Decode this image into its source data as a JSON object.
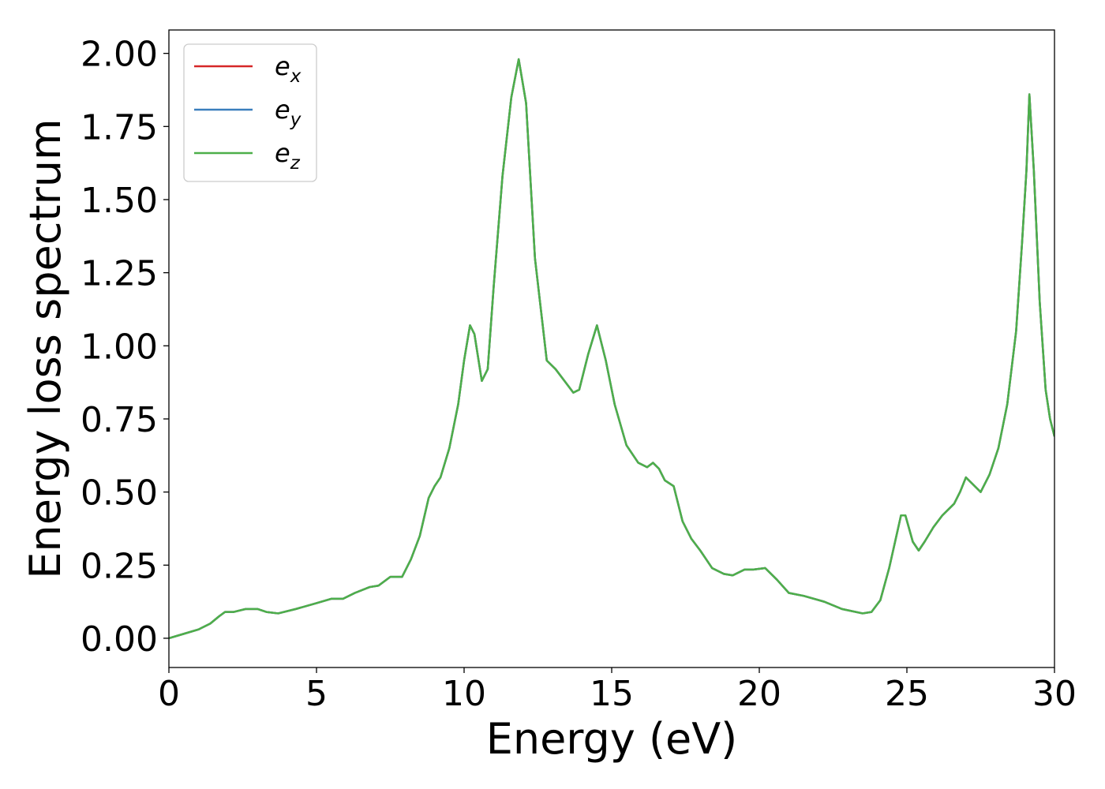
{
  "chart_data": {
    "type": "line",
    "title": "",
    "xlabel": "Energy (eV)",
    "ylabel": "Energy loss spectrum",
    "xlim": [
      0,
      30
    ],
    "ylim": [
      -0.1,
      2.08
    ],
    "xticks": [
      0,
      5,
      10,
      15,
      20,
      25,
      30
    ],
    "xtick_labels": [
      "0",
      "5",
      "10",
      "15",
      "20",
      "25",
      "30"
    ],
    "yticks": [
      0.0,
      0.25,
      0.5,
      0.75,
      1.0,
      1.25,
      1.5,
      1.75,
      2.0
    ],
    "ytick_labels": [
      "0.00",
      "0.25",
      "0.50",
      "0.75",
      "1.00",
      "1.25",
      "1.50",
      "1.75",
      "2.00"
    ],
    "grid": false,
    "legend_position": "top-left",
    "x": [
      0,
      0.5,
      1.0,
      1.4,
      1.7,
      1.9,
      2.2,
      2.6,
      3.0,
      3.3,
      3.7,
      4.3,
      5.0,
      5.5,
      5.9,
      6.3,
      6.8,
      7.1,
      7.5,
      7.9,
      8.2,
      8.5,
      8.8,
      9.0,
      9.2,
      9.5,
      9.8,
      10.0,
      10.2,
      10.35,
      10.6,
      10.8,
      11.0,
      11.3,
      11.6,
      11.85,
      12.1,
      12.4,
      12.8,
      13.1,
      13.4,
      13.7,
      13.9,
      14.2,
      14.5,
      14.8,
      15.1,
      15.5,
      15.9,
      16.2,
      16.4,
      16.6,
      16.8,
      17.1,
      17.4,
      17.7,
      18.0,
      18.4,
      18.8,
      19.1,
      19.5,
      19.8,
      20.2,
      20.6,
      21.0,
      21.5,
      22.2,
      22.8,
      23.5,
      23.8,
      24.1,
      24.4,
      24.6,
      24.8,
      24.95,
      25.2,
      25.4,
      25.6,
      25.9,
      26.2,
      26.6,
      26.8,
      27.0,
      27.2,
      27.5,
      27.8,
      28.1,
      28.4,
      28.7,
      28.9,
      29.05,
      29.15,
      29.3,
      29.5,
      29.7,
      29.85,
      30.0
    ],
    "series": [
      {
        "name": "x",
        "color": "#d62728",
        "values": [
          0.0,
          0.015,
          0.03,
          0.05,
          0.075,
          0.09,
          0.09,
          0.1,
          0.1,
          0.09,
          0.085,
          0.1,
          0.12,
          0.135,
          0.135,
          0.155,
          0.175,
          0.18,
          0.21,
          0.21,
          0.27,
          0.35,
          0.48,
          0.52,
          0.55,
          0.65,
          0.8,
          0.95,
          1.07,
          1.04,
          0.88,
          0.92,
          1.2,
          1.58,
          1.85,
          1.98,
          1.83,
          1.3,
          0.95,
          0.92,
          0.88,
          0.84,
          0.85,
          0.97,
          1.07,
          0.95,
          0.8,
          0.66,
          0.6,
          0.585,
          0.6,
          0.58,
          0.54,
          0.52,
          0.4,
          0.34,
          0.3,
          0.24,
          0.22,
          0.215,
          0.235,
          0.235,
          0.24,
          0.2,
          0.155,
          0.145,
          0.125,
          0.1,
          0.085,
          0.09,
          0.13,
          0.24,
          0.33,
          0.42,
          0.42,
          0.33,
          0.3,
          0.33,
          0.38,
          0.42,
          0.46,
          0.5,
          0.55,
          0.53,
          0.5,
          0.56,
          0.65,
          0.8,
          1.05,
          1.35,
          1.6,
          1.86,
          1.6,
          1.15,
          0.85,
          0.75,
          0.69
        ]
      },
      {
        "name": "y",
        "color": "#3a7fbd",
        "values": [
          0.0,
          0.015,
          0.03,
          0.05,
          0.075,
          0.09,
          0.09,
          0.1,
          0.1,
          0.09,
          0.085,
          0.1,
          0.12,
          0.135,
          0.135,
          0.155,
          0.175,
          0.18,
          0.21,
          0.21,
          0.27,
          0.35,
          0.48,
          0.52,
          0.55,
          0.65,
          0.8,
          0.95,
          1.07,
          1.04,
          0.88,
          0.92,
          1.2,
          1.58,
          1.85,
          1.98,
          1.83,
          1.3,
          0.95,
          0.92,
          0.88,
          0.84,
          0.85,
          0.97,
          1.07,
          0.95,
          0.8,
          0.66,
          0.6,
          0.585,
          0.6,
          0.58,
          0.54,
          0.52,
          0.4,
          0.34,
          0.3,
          0.24,
          0.22,
          0.215,
          0.235,
          0.235,
          0.24,
          0.2,
          0.155,
          0.145,
          0.125,
          0.1,
          0.085,
          0.09,
          0.13,
          0.24,
          0.33,
          0.42,
          0.42,
          0.33,
          0.3,
          0.33,
          0.38,
          0.42,
          0.46,
          0.5,
          0.55,
          0.53,
          0.5,
          0.56,
          0.65,
          0.8,
          1.05,
          1.35,
          1.6,
          1.86,
          1.6,
          1.15,
          0.85,
          0.75,
          0.69
        ]
      },
      {
        "name": "z",
        "color": "#4daf4a",
        "values": [
          0.0,
          0.015,
          0.03,
          0.05,
          0.075,
          0.09,
          0.09,
          0.1,
          0.1,
          0.09,
          0.085,
          0.1,
          0.12,
          0.135,
          0.135,
          0.155,
          0.175,
          0.18,
          0.21,
          0.21,
          0.27,
          0.35,
          0.48,
          0.52,
          0.55,
          0.65,
          0.8,
          0.95,
          1.07,
          1.04,
          0.88,
          0.92,
          1.2,
          1.58,
          1.85,
          1.98,
          1.83,
          1.3,
          0.95,
          0.92,
          0.88,
          0.84,
          0.85,
          0.97,
          1.07,
          0.95,
          0.8,
          0.66,
          0.6,
          0.585,
          0.6,
          0.58,
          0.54,
          0.52,
          0.4,
          0.34,
          0.3,
          0.24,
          0.22,
          0.215,
          0.235,
          0.235,
          0.24,
          0.2,
          0.155,
          0.145,
          0.125,
          0.1,
          0.085,
          0.09,
          0.13,
          0.24,
          0.33,
          0.42,
          0.42,
          0.33,
          0.3,
          0.33,
          0.38,
          0.42,
          0.46,
          0.5,
          0.55,
          0.53,
          0.5,
          0.56,
          0.65,
          0.8,
          1.05,
          1.35,
          1.6,
          1.86,
          1.6,
          1.15,
          0.85,
          0.75,
          0.69
        ]
      }
    ],
    "legend": [
      {
        "base": "e",
        "sub": "x"
      },
      {
        "base": "e",
        "sub": "y"
      },
      {
        "base": "e",
        "sub": "z"
      }
    ]
  }
}
